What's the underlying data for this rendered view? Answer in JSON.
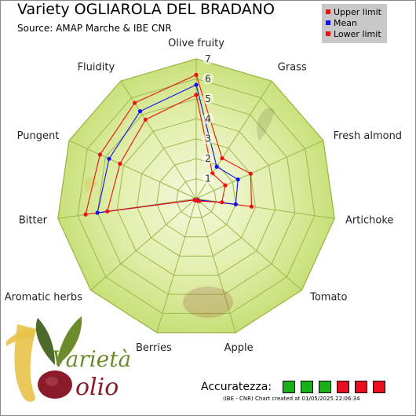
{
  "title": "Variety OGLIAROLA DEL BRADANO",
  "subtitle": "Source: AMAP Marche & IBE CNR",
  "legend": [
    {
      "label": "Upper limit",
      "color": "#ee1111"
    },
    {
      "label": "Mean",
      "color": "#1111ee"
    },
    {
      "label": "Lower limit",
      "color": "#ee1111"
    }
  ],
  "chart_data": {
    "type": "radar",
    "axes": [
      "Olive fruity",
      "Grass",
      "Fresh almond",
      "Artichoke",
      "Tomato",
      "Apple",
      "Berries",
      "Aromatic herbs",
      "Bitter",
      "Pungent",
      "Fluidity"
    ],
    "ticks": [
      "1",
      "2",
      "3",
      "4",
      "5",
      "6",
      "7"
    ],
    "range": [
      0,
      7
    ],
    "series": [
      {
        "name": "Upper limit",
        "color": "#ee1111",
        "values": [
          6.2,
          2.4,
          3.0,
          2.8,
          0.1,
          0.1,
          0.1,
          0.1,
          5.6,
          5.3,
          5.7
        ]
      },
      {
        "name": "Mean",
        "color": "#1111ee",
        "values": [
          5.7,
          1.9,
          2.3,
          2.0,
          0.1,
          0.1,
          0.1,
          0.1,
          5.0,
          4.8,
          5.2
        ]
      },
      {
        "name": "Lower limit",
        "color": "#ee1111",
        "values": [
          5.2,
          1.5,
          1.6,
          1.3,
          0.2,
          0.1,
          0.1,
          0.1,
          4.5,
          4.2,
          4.7
        ]
      }
    ]
  },
  "logo": {
    "text_top": "Varietà",
    "text_bottom": "olio"
  },
  "accuracy": {
    "label": "Accuratezza:",
    "boxes": [
      "#19b019",
      "#19b019",
      "#19b019",
      "#e8101e",
      "#e8101e",
      "#e8101e"
    ]
  },
  "credits": "(IBE - CNR) Chart created at 01/05/2025 22:06:34"
}
